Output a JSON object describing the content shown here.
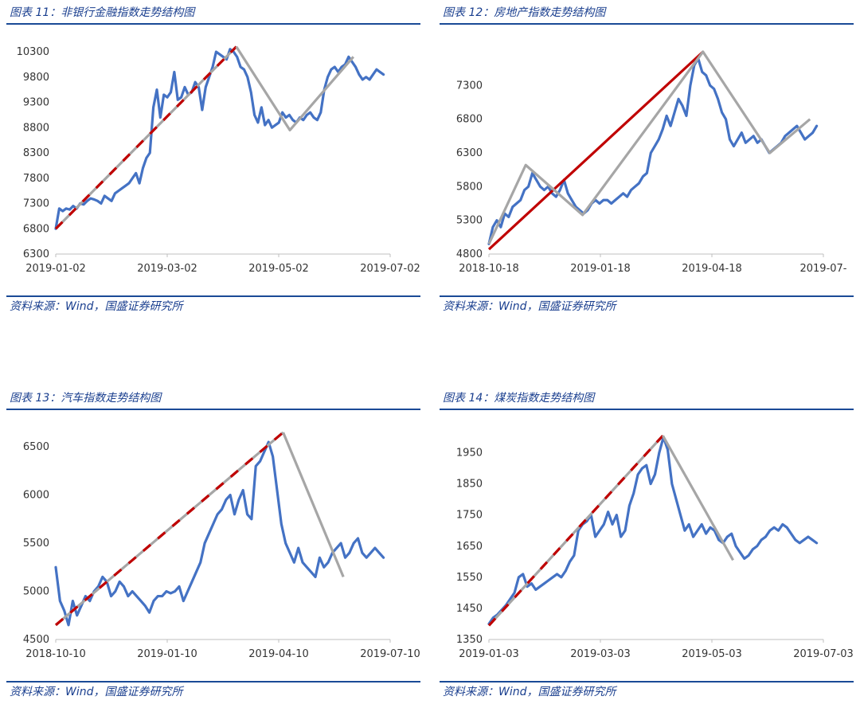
{
  "source_prefix": "资料来源：",
  "source_wind": "Wind",
  "source_org": "，国盛证券研究所",
  "colors": {
    "title": "#1a3f8f",
    "rule": "#1a4a96",
    "series": "#4472c4",
    "trend_gray": "#a6a6a6",
    "trend_red": "#c00000"
  },
  "chart_data": [
    {
      "type": "line",
      "title": "图表 11：非银行金融指数走势结构图",
      "xlabel": "",
      "ylabel": "",
      "x_ticks": [
        "2019-01-02",
        "2019-03-02",
        "2019-05-02",
        "2019-07-02"
      ],
      "y_ticks": [
        6300,
        6800,
        7300,
        7800,
        8300,
        8800,
        9300,
        9800,
        10300
      ],
      "ylim": [
        6300,
        10300
      ],
      "series": [
        {
          "values": [
            6800,
            7200,
            7150,
            7200,
            7180,
            7250,
            7200,
            7300,
            7280,
            7350,
            7400,
            7380,
            7350,
            7300,
            7450,
            7400,
            7350,
            7500,
            7550,
            7600,
            7650,
            7700,
            7800,
            7900,
            7700,
            8000,
            8200,
            8300,
            9200,
            9550,
            9000,
            9450,
            9400,
            9500,
            9900,
            9350,
            9400,
            9600,
            9450,
            9500,
            9700,
            9600,
            9150,
            9600,
            9800,
            10000,
            10300,
            10250,
            10200,
            10150,
            10350,
            10300,
            10200,
            10000,
            9950,
            9800,
            9500,
            9050,
            8900,
            9200,
            8850,
            8950,
            8800,
            8850,
            8900,
            9100,
            9000,
            9050,
            8950,
            8900,
            9000,
            8950,
            9050,
            9100,
            9000,
            8950,
            9100,
            9550,
            9800,
            9950,
            10000,
            9900,
            10000,
            10050,
            10200,
            10100,
            10000,
            9850,
            9750,
            9800,
            9750,
            9850,
            9950,
            9900,
            9850
          ]
        },
        {
          "style": "dashed-red-gray",
          "points": [
            [
              0,
              6800
            ],
            [
              0.54,
              10400
            ]
          ]
        },
        {
          "style": "solid-gray",
          "points": [
            [
              0.54,
              10400
            ],
            [
              0.7,
              8750
            ],
            [
              0.89,
              10200
            ]
          ]
        }
      ]
    },
    {
      "type": "line",
      "title": "图表 12：房地产指数走势结构图",
      "xlabel": "",
      "ylabel": "",
      "x_ticks": [
        "2018-10-18",
        "2019-01-18",
        "2019-04-18",
        "2019-07-"
      ],
      "y_ticks": [
        4800,
        5300,
        5800,
        6300,
        6800,
        7300
      ],
      "ylim": [
        4800,
        7800
      ],
      "series": [
        {
          "values": [
            4950,
            5200,
            5300,
            5200,
            5400,
            5350,
            5500,
            5550,
            5600,
            5750,
            5800,
            6000,
            5900,
            5800,
            5750,
            5800,
            5700,
            5650,
            5750,
            5900,
            5700,
            5600,
            5500,
            5450,
            5400,
            5450,
            5550,
            5600,
            5550,
            5600,
            5600,
            5550,
            5600,
            5650,
            5700,
            5650,
            5750,
            5800,
            5850,
            5950,
            6000,
            6300,
            6400,
            6500,
            6650,
            6850,
            6700,
            6900,
            7100,
            7000,
            6850,
            7300,
            7600,
            7700,
            7500,
            7450,
            7300,
            7250,
            7100,
            6900,
            6800,
            6500,
            6400,
            6500,
            6600,
            6450,
            6500,
            6550,
            6450,
            6500,
            6400,
            6300,
            6350,
            6400,
            6450,
            6550,
            6600,
            6650,
            6700,
            6600,
            6500,
            6550,
            6600,
            6700
          ]
        },
        {
          "style": "solid-red",
          "points": [
            [
              0,
              4870
            ],
            [
              0.64,
              7800
            ]
          ]
        },
        {
          "style": "solid-gray",
          "points": [
            [
              0,
              4950
            ],
            [
              0.11,
              6120
            ],
            [
              0.28,
              5380
            ],
            [
              0.64,
              7800
            ],
            [
              0.84,
              6300
            ],
            [
              0.96,
              6800
            ]
          ]
        }
      ]
    },
    {
      "type": "line",
      "title": "图表 13：汽车指数走势结构图",
      "xlabel": "",
      "ylabel": "",
      "x_ticks": [
        "2018-10-10",
        "2019-01-10",
        "2019-04-10",
        "2019-07-10"
      ],
      "y_ticks": [
        4500,
        5000,
        5500,
        6000,
        6500
      ],
      "ylim": [
        4500,
        6600
      ],
      "series": [
        {
          "values": [
            5250,
            4900,
            4800,
            4650,
            4900,
            4750,
            4850,
            4950,
            4900,
            5000,
            5050,
            5150,
            5100,
            4950,
            5000,
            5100,
            5050,
            4950,
            5000,
            4950,
            4900,
            4850,
            4780,
            4900,
            4950,
            4950,
            5000,
            4980,
            5000,
            5050,
            4900,
            5000,
            5100,
            5200,
            5300,
            5500,
            5600,
            5700,
            5800,
            5850,
            5950,
            6000,
            5800,
            5950,
            6050,
            5800,
            5750,
            6300,
            6350,
            6450,
            6550,
            6400,
            6050,
            5700,
            5500,
            5400,
            5300,
            5450,
            5300,
            5250,
            5200,
            5150,
            5350,
            5250,
            5300,
            5400,
            5450,
            5500,
            5350,
            5400,
            5500,
            5550,
            5400,
            5350,
            5400,
            5450,
            5400,
            5350
          ]
        },
        {
          "style": "dashed-red-gray",
          "points": [
            [
              0,
              4650
            ],
            [
              0.68,
              6650
            ]
          ]
        },
        {
          "style": "solid-gray",
          "points": [
            [
              0.68,
              6650
            ],
            [
              0.86,
              5150
            ]
          ]
        }
      ]
    },
    {
      "type": "line",
      "title": "图表 14：煤炭指数走势结构图",
      "xlabel": "",
      "ylabel": "",
      "x_ticks": [
        "2019-01-03",
        "2019-03-03",
        "2019-05-03",
        "2019-07-03"
      ],
      "y_ticks": [
        1350,
        1450,
        1550,
        1650,
        1750,
        1850,
        1950
      ],
      "ylim": [
        1350,
        2000
      ],
      "series": [
        {
          "values": [
            1400,
            1420,
            1430,
            1445,
            1460,
            1480,
            1500,
            1550,
            1560,
            1520,
            1530,
            1510,
            1520,
            1530,
            1540,
            1550,
            1560,
            1550,
            1570,
            1600,
            1620,
            1700,
            1720,
            1730,
            1750,
            1680,
            1700,
            1720,
            1760,
            1720,
            1750,
            1680,
            1700,
            1780,
            1820,
            1880,
            1900,
            1910,
            1850,
            1880,
            1950,
            2000,
            1960,
            1850,
            1800,
            1750,
            1700,
            1720,
            1680,
            1700,
            1720,
            1690,
            1710,
            1700,
            1670,
            1660,
            1680,
            1690,
            1650,
            1630,
            1610,
            1620,
            1640,
            1650,
            1670,
            1680,
            1700,
            1710,
            1700,
            1720,
            1710,
            1690,
            1670,
            1660,
            1670,
            1680,
            1670,
            1660
          ]
        },
        {
          "style": "dashed-red-gray",
          "points": [
            [
              0,
              1395
            ],
            [
              0.52,
              2005
            ]
          ]
        },
        {
          "style": "solid-gray",
          "points": [
            [
              0.52,
              2005
            ],
            [
              0.73,
              1605
            ]
          ]
        }
      ]
    }
  ]
}
